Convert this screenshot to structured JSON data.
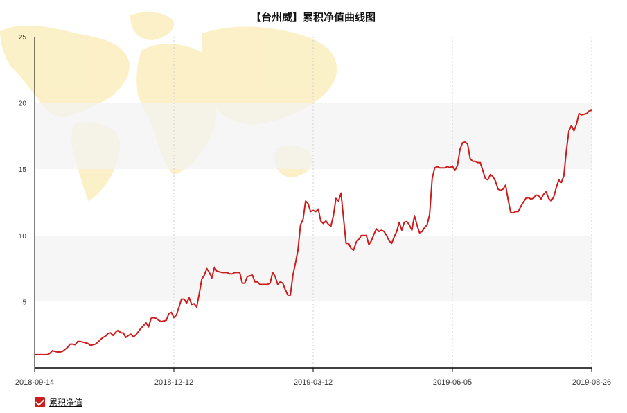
{
  "chart_data": {
    "type": "line",
    "title": "【台州威】累积净值曲线图",
    "xlabel": "",
    "ylabel": "",
    "ylim": [
      0,
      25
    ],
    "yticks": [
      5,
      10,
      15,
      20,
      25
    ],
    "xticks": [
      "2018-09-14",
      "2018-12-12",
      "2019-03-12",
      "2019-06-05",
      "2019-08-26"
    ],
    "legend": "bottom-left",
    "grid": "horizontal bands",
    "series": [
      {
        "name": "累积净值",
        "color": "#cc1b1b",
        "values": [
          1.0,
          1.0,
          1.0,
          1.0,
          1.0,
          1.0,
          1.1,
          1.3,
          1.25,
          1.2,
          1.2,
          1.25,
          1.4,
          1.55,
          1.8,
          1.8,
          1.75,
          2.0,
          2.0,
          1.95,
          1.9,
          1.85,
          1.7,
          1.75,
          1.8,
          1.95,
          2.15,
          2.3,
          2.4,
          2.6,
          2.65,
          2.45,
          2.7,
          2.85,
          2.65,
          2.65,
          2.3,
          2.45,
          2.55,
          2.35,
          2.5,
          2.75,
          3.0,
          3.2,
          3.4,
          3.1,
          3.75,
          3.8,
          3.75,
          3.6,
          3.5,
          3.55,
          3.6,
          4.1,
          4.2,
          3.8,
          4.0,
          4.6,
          5.2,
          5.2,
          4.9,
          5.3,
          4.8,
          4.85,
          4.6,
          5.6,
          6.7,
          7.0,
          7.5,
          7.2,
          6.8,
          7.6,
          7.3,
          7.25,
          7.2,
          7.2,
          7.2,
          7.1,
          7.1,
          7.2,
          7.2,
          7.2,
          6.4,
          6.4,
          6.9,
          6.95,
          7.0,
          6.5,
          6.5,
          6.3,
          6.3,
          6.3,
          6.3,
          6.4,
          7.2,
          6.9,
          6.3,
          6.5,
          6.4,
          5.9,
          5.5,
          5.5,
          7.0,
          7.9,
          8.9,
          10.8,
          11.2,
          12.6,
          12.4,
          11.8,
          11.9,
          11.8,
          12.0,
          11.1,
          10.9,
          11.1,
          10.85,
          10.7,
          11.5,
          12.8,
          12.6,
          13.2,
          11.3,
          9.4,
          9.4,
          9.0,
          8.9,
          9.5,
          9.7,
          10.0,
          10.0,
          10.0,
          9.3,
          9.6,
          10.1,
          10.5,
          10.3,
          10.4,
          10.3,
          10.0,
          9.6,
          9.4,
          9.9,
          10.3,
          11.0,
          10.4,
          11.0,
          11.05,
          10.8,
          10.4,
          11.5,
          10.8,
          10.2,
          10.3,
          10.6,
          10.8,
          11.6,
          14.3,
          15.1,
          15.2,
          15.1,
          15.1,
          15.1,
          15.2,
          15.1,
          15.25,
          14.9,
          15.3,
          16.5,
          17.0,
          17.05,
          16.9,
          15.8,
          15.6,
          15.6,
          15.5,
          15.5,
          14.9,
          14.3,
          14.2,
          14.6,
          14.45,
          14.1,
          13.5,
          13.4,
          13.5,
          13.8,
          12.7,
          11.75,
          11.7,
          11.8,
          11.8,
          12.2,
          12.5,
          12.8,
          12.85,
          12.75,
          12.8,
          13.05,
          13.0,
          12.75,
          13.1,
          13.3,
          12.8,
          12.6,
          12.9,
          13.6,
          14.2,
          14.0,
          14.5,
          16.4,
          17.9,
          18.3,
          17.9,
          18.4,
          19.2,
          19.1,
          19.15,
          19.2,
          19.4,
          19.45
        ]
      }
    ]
  }
}
